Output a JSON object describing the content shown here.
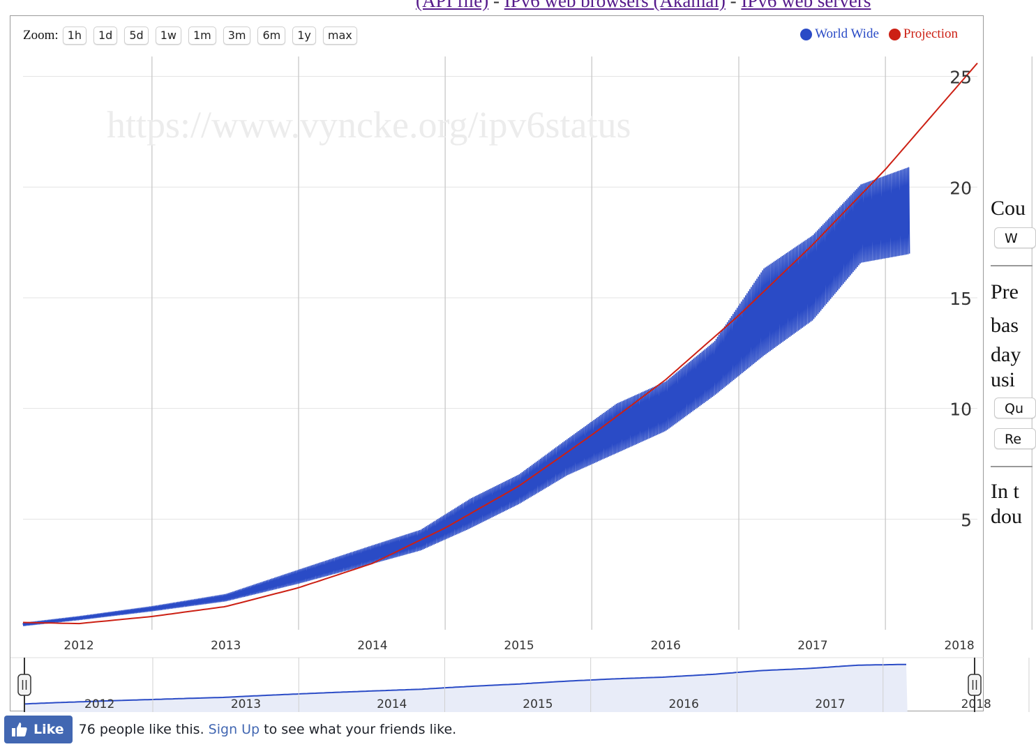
{
  "top_links": {
    "api_link": "(API file)",
    "sep1": " - ",
    "browsers_link": "IPv6 web browsers (Akamai)",
    "sep2": " - ",
    "servers_link": "IPv6 web servers"
  },
  "zoom": {
    "label": "Zoom:",
    "buttons": [
      "1h",
      "1d",
      "5d",
      "1w",
      "1m",
      "3m",
      "6m",
      "1y",
      "max"
    ]
  },
  "watermark": "https://www.vyncke.org/ipv6status",
  "colors": {
    "world_wide": "#2a4bc6",
    "projection": "#cc2014",
    "navigator_fill": "#e8ecf8",
    "grid": "#c8c8c8"
  },
  "chart_data": {
    "type": "line",
    "title": "",
    "xlabel": "",
    "ylabel": "",
    "x_ticks": [
      "2012",
      "2013",
      "2014",
      "2015",
      "2016",
      "2017",
      "2018"
    ],
    "y_ticks": [
      5,
      10,
      15,
      20,
      25
    ],
    "xlim": [
      "2011-08-15",
      "2018-02-15"
    ],
    "ylim": [
      0,
      25.9
    ],
    "grid": true,
    "legend_position": "top-right",
    "series": [
      {
        "name": "World Wide",
        "kind": "oscillating-weekly",
        "points": [
          {
            "x": "2011-08-15",
            "low": 0.18,
            "high": 0.3
          },
          {
            "x": "2012-01-01",
            "low": 0.45,
            "high": 0.6
          },
          {
            "x": "2012-07-01",
            "low": 0.85,
            "high": 1.05
          },
          {
            "x": "2013-01-01",
            "low": 1.3,
            "high": 1.6
          },
          {
            "x": "2013-07-01",
            "low": 2.1,
            "high": 2.7
          },
          {
            "x": "2014-01-01",
            "low": 3.0,
            "high": 3.8
          },
          {
            "x": "2014-05-01",
            "low": 3.6,
            "high": 4.5
          },
          {
            "x": "2014-09-01",
            "low": 4.6,
            "high": 5.9
          },
          {
            "x": "2015-01-01",
            "low": 5.7,
            "high": 7.0
          },
          {
            "x": "2015-05-01",
            "low": 7.0,
            "high": 8.6
          },
          {
            "x": "2015-09-01",
            "low": 8.0,
            "high": 10.2
          },
          {
            "x": "2016-01-01",
            "low": 9.0,
            "high": 11.2
          },
          {
            "x": "2016-05-01",
            "low": 10.6,
            "high": 13.0
          },
          {
            "x": "2016-09-01",
            "low": 12.4,
            "high": 16.3
          },
          {
            "x": "2017-01-01",
            "low": 14.0,
            "high": 17.8
          },
          {
            "x": "2017-05-01",
            "low": 16.6,
            "high": 20.1
          },
          {
            "x": "2017-08-31",
            "low": 17.0,
            "high": 20.9
          }
        ]
      },
      {
        "name": "Projection",
        "points": [
          {
            "x": "2011-08-15",
            "y": 0.33
          },
          {
            "x": "2012-01-01",
            "y": 0.28
          },
          {
            "x": "2012-07-01",
            "y": 0.6
          },
          {
            "x": "2013-01-01",
            "y": 1.05
          },
          {
            "x": "2013-07-01",
            "y": 1.9
          },
          {
            "x": "2014-01-01",
            "y": 3.0
          },
          {
            "x": "2014-07-01",
            "y": 4.6
          },
          {
            "x": "2015-01-01",
            "y": 6.5
          },
          {
            "x": "2015-07-01",
            "y": 8.8
          },
          {
            "x": "2016-01-01",
            "y": 11.3
          },
          {
            "x": "2016-07-01",
            "y": 14.2
          },
          {
            "x": "2017-01-01",
            "y": 17.4
          },
          {
            "x": "2017-07-01",
            "y": 20.8
          },
          {
            "x": "2018-02-15",
            "y": 25.6
          }
        ]
      }
    ],
    "navigator": {
      "x_ticks": [
        "2012",
        "2013",
        "2014",
        "2015",
        "2016",
        "2017",
        "2018"
      ]
    }
  },
  "side_panel": {
    "line1": "Cou",
    "btn1": "W",
    "line2": "Pre",
    "line3": "bas",
    "line4": "day",
    "line5": "usi",
    "btn2": "Qu",
    "btn3": "Re",
    "line6": "In t",
    "line7": "dou"
  },
  "facebook": {
    "like_label": "Like",
    "count_text": "76 people like this.",
    "signup_link": "Sign Up",
    "rest_text": "to see what your friends like."
  }
}
